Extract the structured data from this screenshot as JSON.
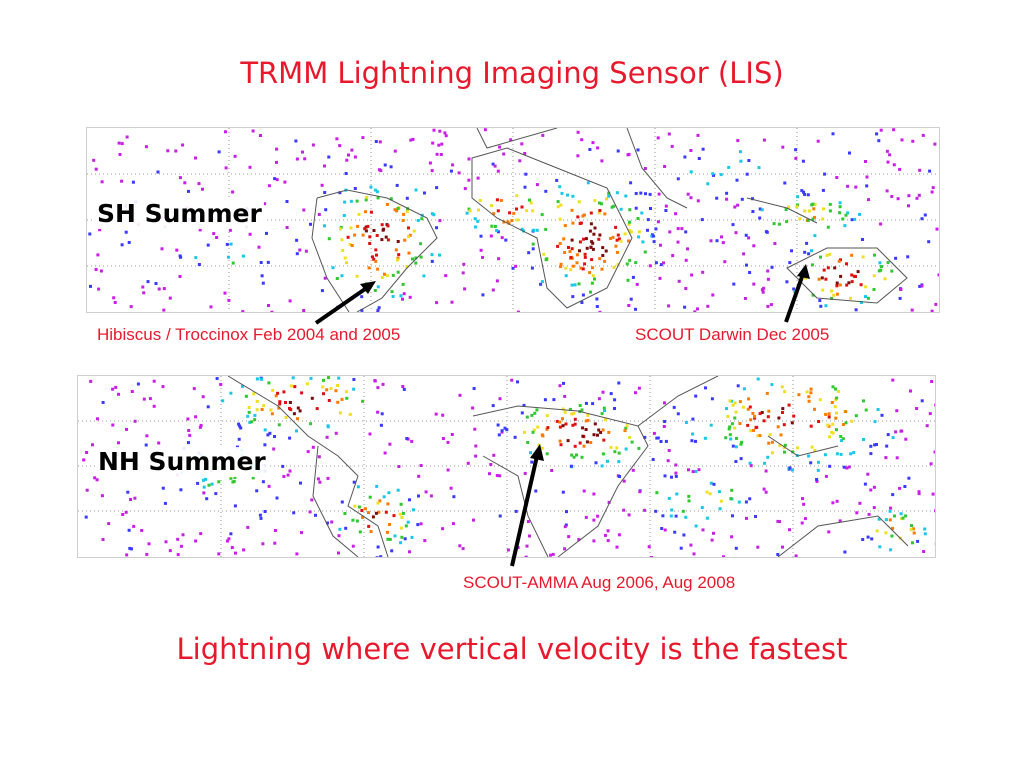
{
  "slide": {
    "title": "TRMM Lightning Imaging Sensor (LIS)",
    "bottom_text": "Lightning where vertical velocity is the fastest"
  },
  "maps": {
    "sh": {
      "label": "SH Summer"
    },
    "nh": {
      "label": "NH Summer"
    }
  },
  "annotations": {
    "hibiscus": "Hibiscus / Troccinox Feb 2004 and 2005",
    "darwin": "SCOUT Darwin Dec 2005",
    "amma": "SCOUT-AMMA Aug 2006, Aug 2008"
  },
  "colors": {
    "title": "#e8192c",
    "heat_scale": [
      "#c81ee6",
      "#3a3aff",
      "#18c8e8",
      "#2fc82f",
      "#f0e020",
      "#ff7a00",
      "#e01010",
      "#7a0c0c"
    ]
  }
}
